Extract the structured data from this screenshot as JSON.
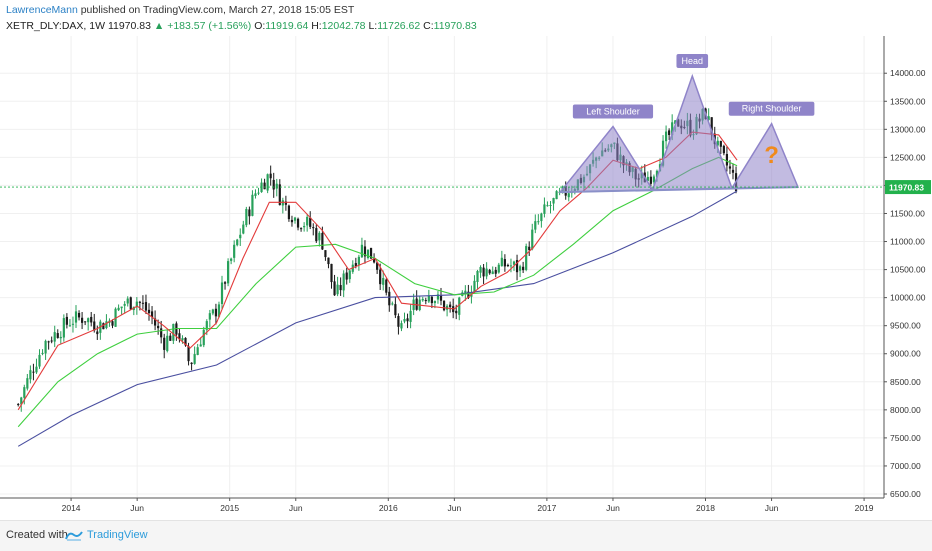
{
  "header": {
    "author": "LawrenceMann",
    "published_text": "published on TradingView.com, March 27, 2018 15:05 EST",
    "symbol": "XETR_DLY:DAX, 1W",
    "last": "11970.83",
    "change_arrow": "▲",
    "change": "+183.57 (+1.56%)",
    "o_label": "O:",
    "o_val": "11919.64",
    "h_label": "H:",
    "h_val": "12042.78",
    "l_label": "L:",
    "l_val": "11726.62",
    "c_label": "C:",
    "c_val": "11970.83"
  },
  "footer": {
    "created_with": "Created with",
    "brand": "TradingView"
  },
  "colors": {
    "up": "#27a05a",
    "down": "#1a1a1a",
    "ema_fast": "#e33b3b",
    "ema_mid": "#3fcf3f",
    "ema_slow": "#4a4fa0",
    "pattern_fill": "#8f84c9",
    "neckline": "#8a90c8",
    "price_line": "#22b14c",
    "question": "#f08a1c"
  },
  "chart_data": {
    "type": "candlestick",
    "ylim": [
      6500,
      14200
    ],
    "y_ticks": [
      "14000.00",
      "13500.00",
      "13000.00",
      "12500.00",
      "12000.00",
      "11500.00",
      "11000.00",
      "10500.00",
      "10000.00",
      "9500.00",
      "9000.00",
      "8500.00",
      "8000.00",
      "7500.00",
      "7000.00",
      "6500.00"
    ],
    "x_ticks": [
      {
        "label": "2014",
        "date": "2014-01"
      },
      {
        "label": "Jun",
        "date": "2014-06"
      },
      {
        "label": "2015",
        "date": "2015-01"
      },
      {
        "label": "Jun",
        "date": "2015-06"
      },
      {
        "label": "2016",
        "date": "2016-01"
      },
      {
        "label": "Jun",
        "date": "2016-06"
      },
      {
        "label": "2017",
        "date": "2017-01"
      },
      {
        "label": "Jun",
        "date": "2017-06"
      },
      {
        "label": "2018",
        "date": "2018-01"
      },
      {
        "label": "Jun",
        "date": "2018-06"
      },
      {
        "label": "2019",
        "date": "2019-01"
      }
    ],
    "last_price": 11970.83,
    "last_price_label": "11970.83",
    "price_path": [
      [
        "2013-09",
        8100
      ],
      [
        "2013-10",
        8700
      ],
      [
        "2013-11",
        9200
      ],
      [
        "2013-12",
        9400
      ],
      [
        "2014-01",
        9600
      ],
      [
        "2014-02",
        9650
      ],
      [
        "2014-03",
        9500
      ],
      [
        "2014-04",
        9600
      ],
      [
        "2014-05",
        9900
      ],
      [
        "2014-06",
        9950
      ],
      [
        "2014-07",
        9700
      ],
      [
        "2014-08",
        9200
      ],
      [
        "2014-09",
        9450
      ],
      [
        "2014-10",
        8800
      ],
      [
        "2014-11",
        9400
      ],
      [
        "2014-12",
        9800
      ],
      [
        "2015-01",
        10600
      ],
      [
        "2015-02",
        11300
      ],
      [
        "2015-03",
        11900
      ],
      [
        "2015-04",
        12200
      ],
      [
        "2015-05",
        11700
      ],
      [
        "2015-06",
        11400
      ],
      [
        "2015-07",
        11300
      ],
      [
        "2015-08",
        11000
      ],
      [
        "2015-09",
        10000
      ],
      [
        "2015-10",
        10500
      ],
      [
        "2015-11",
        10900
      ],
      [
        "2015-12",
        10700
      ],
      [
        "2016-01",
        9900
      ],
      [
        "2016-02",
        9400
      ],
      [
        "2016-03",
        9900
      ],
      [
        "2016-04",
        10100
      ],
      [
        "2016-05",
        9900
      ],
      [
        "2016-06",
        9700
      ],
      [
        "2016-07",
        10100
      ],
      [
        "2016-08",
        10500
      ],
      [
        "2016-09",
        10500
      ],
      [
        "2016-10",
        10600
      ],
      [
        "2016-11",
        10500
      ],
      [
        "2016-12",
        11200
      ],
      [
        "2017-01",
        11600
      ],
      [
        "2017-02",
        11800
      ],
      [
        "2017-03",
        12000
      ],
      [
        "2017-04",
        12200
      ],
      [
        "2017-05",
        12600
      ],
      [
        "2017-06",
        12700
      ],
      [
        "2017-07",
        12300
      ],
      [
        "2017-08",
        12100
      ],
      [
        "2017-09",
        12200
      ],
      [
        "2017-10",
        12800
      ],
      [
        "2017-11",
        13150
      ],
      [
        "2017-12",
        13000
      ],
      [
        "2018-01",
        13300
      ],
      [
        "2018-02",
        12600
      ],
      [
        "2018-03",
        12200
      ],
      [
        "2018-03-27",
        11970
      ]
    ],
    "ema_fast": [
      [
        "2013-09",
        8000
      ],
      [
        "2013-12",
        9150
      ],
      [
        "2014-03",
        9450
      ],
      [
        "2014-06",
        9850
      ],
      [
        "2014-08",
        9500
      ],
      [
        "2014-10",
        9100
      ],
      [
        "2014-12",
        9550
      ],
      [
        "2015-02",
        10700
      ],
      [
        "2015-04",
        11700
      ],
      [
        "2015-06",
        11700
      ],
      [
        "2015-08",
        11200
      ],
      [
        "2015-10",
        10500
      ],
      [
        "2015-12",
        10700
      ],
      [
        "2016-02",
        9900
      ],
      [
        "2016-04",
        9850
      ],
      [
        "2016-06",
        9800
      ],
      [
        "2016-08",
        10200
      ],
      [
        "2016-10",
        10450
      ],
      [
        "2016-12",
        10900
      ],
      [
        "2017-02",
        11550
      ],
      [
        "2017-04",
        11950
      ],
      [
        "2017-06",
        12450
      ],
      [
        "2017-08",
        12300
      ],
      [
        "2017-10",
        12500
      ],
      [
        "2017-12",
        12950
      ],
      [
        "2018-02",
        12900
      ],
      [
        "2018-03-27",
        12450
      ]
    ],
    "ema_mid": [
      [
        "2013-09",
        7700
      ],
      [
        "2013-12",
        8500
      ],
      [
        "2014-03",
        9000
      ],
      [
        "2014-06",
        9350
      ],
      [
        "2014-09",
        9450
      ],
      [
        "2014-12",
        9450
      ],
      [
        "2015-03",
        10250
      ],
      [
        "2015-06",
        10900
      ],
      [
        "2015-09",
        10950
      ],
      [
        "2015-12",
        10700
      ],
      [
        "2016-03",
        10250
      ],
      [
        "2016-06",
        10050
      ],
      [
        "2016-09",
        10100
      ],
      [
        "2016-12",
        10400
      ],
      [
        "2017-03",
        10950
      ],
      [
        "2017-06",
        11550
      ],
      [
        "2017-09",
        11900
      ],
      [
        "2017-12",
        12300
      ],
      [
        "2018-02",
        12500
      ],
      [
        "2018-03-27",
        12350
      ]
    ],
    "ema_slow": [
      [
        "2013-09",
        7350
      ],
      [
        "2014-01",
        7900
      ],
      [
        "2014-06",
        8450
      ],
      [
        "2014-12",
        8800
      ],
      [
        "2015-06",
        9550
      ],
      [
        "2015-12",
        10000
      ],
      [
        "2016-06",
        10050
      ],
      [
        "2016-12",
        10250
      ],
      [
        "2017-06",
        10800
      ],
      [
        "2017-12",
        11450
      ],
      [
        "2018-03-27",
        11900
      ]
    ],
    "pattern": {
      "neckline": [
        [
          "2017-02",
          11880
        ],
        [
          "2018-08",
          11970
        ]
      ],
      "left_shoulder": {
        "label": "Left Shoulder",
        "apex": [
          "2017-06",
          13050
        ],
        "base": [
          [
            "2017-02",
            11880
          ],
          [
            "2017-09",
            11920
          ]
        ]
      },
      "head": {
        "label": "Head",
        "apex": [
          "2017-12",
          13950
        ],
        "base": [
          [
            "2017-09",
            11920
          ],
          [
            "2018-03",
            11950
          ]
        ]
      },
      "right_shoulder": {
        "label": "Right Shoulder",
        "apex": [
          "2018-06",
          13100
        ],
        "base": [
          [
            "2018-03",
            11950
          ],
          [
            "2018-08",
            11970
          ]
        ],
        "marker": "?"
      }
    }
  }
}
